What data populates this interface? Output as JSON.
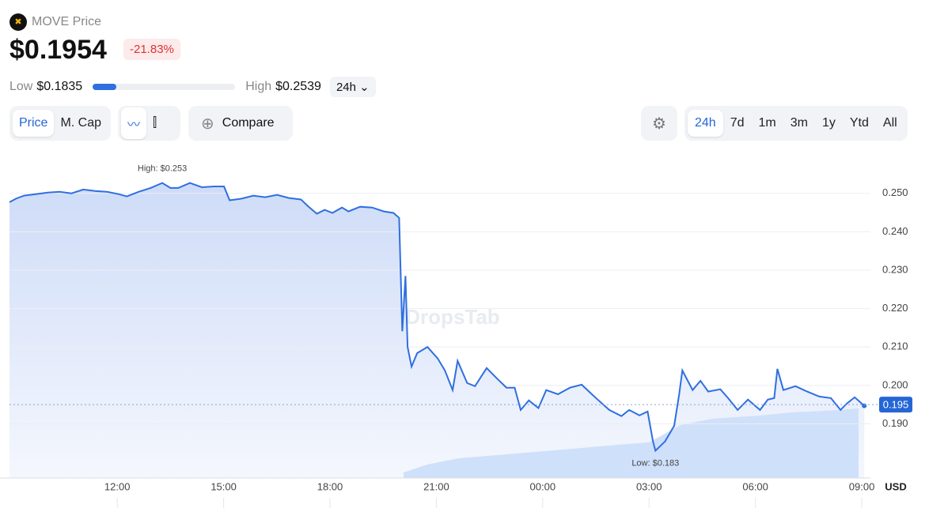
{
  "header": {
    "token": "MOVE Price",
    "price": "$0.1954",
    "change": "-21.83%",
    "low_label": "Low",
    "low": "$0.1835",
    "high_label": "High",
    "high": "$0.2539",
    "period": "24h"
  },
  "toolbar": {
    "tabs": [
      "Price",
      "M. Cap"
    ],
    "compare": "Compare",
    "ranges": [
      "24h",
      "7d",
      "1m",
      "3m",
      "1y",
      "Ytd",
      "All"
    ]
  },
  "watermark": "DropsTab",
  "chart_data": {
    "type": "line",
    "color": "#2f6fe0",
    "currency": "USD",
    "x": [
      8.96,
      9.14,
      9.37,
      9.7,
      10.04,
      10.37,
      10.71,
      11.04,
      11.38,
      11.71,
      12.04,
      12.27,
      12.6,
      12.94,
      13.27,
      13.5,
      13.72,
      14.05,
      14.39,
      14.72,
      15.01,
      15.17,
      15.5,
      15.84,
      16.17,
      16.51,
      16.84,
      17.18,
      17.4,
      17.63,
      17.85,
      18.07,
      18.34,
      18.52,
      18.85,
      19.19,
      19.52,
      19.79,
      19.95,
      20.04,
      20.13,
      20.19,
      20.3,
      20.46,
      20.75,
      21.04,
      21.24,
      21.46,
      21.6,
      21.87,
      22.09,
      22.42,
      22.71,
      22.98,
      23.21,
      23.38,
      23.61,
      23.88,
      24.1,
      24.43,
      24.77,
      25.1,
      25.33,
      25.55,
      25.88,
      26.22,
      26.44,
      26.73,
      26.96,
      27.11,
      27.18,
      27.45,
      27.71,
      27.85,
      27.94,
      28.23,
      28.45,
      28.67,
      29.01,
      29.23,
      29.5,
      29.79,
      30.13,
      30.35,
      30.53,
      30.62,
      30.79,
      31.13,
      31.46,
      31.8,
      32.13,
      32.4,
      32.58,
      32.8,
      33.07
    ],
    "values": [
      0.2477,
      0.2486,
      0.2494,
      0.2498,
      0.2502,
      0.2504,
      0.25,
      0.251,
      0.2506,
      0.2504,
      0.2498,
      0.2492,
      0.2504,
      0.2514,
      0.2527,
      0.2514,
      0.2514,
      0.2527,
      0.2516,
      0.2518,
      0.2518,
      0.2482,
      0.2486,
      0.2494,
      0.249,
      0.2496,
      0.2488,
      0.2484,
      0.2465,
      0.2447,
      0.2457,
      0.2449,
      0.2463,
      0.2453,
      0.2465,
      0.2463,
      0.2453,
      0.2449,
      0.2436,
      0.2141,
      0.2285,
      0.21,
      0.2049,
      0.2084,
      0.21,
      0.207,
      0.2039,
      0.1988,
      0.2064,
      0.2006,
      0.1998,
      0.2045,
      0.2018,
      0.1994,
      0.1994,
      0.1936,
      0.1961,
      0.1941,
      0.1988,
      0.1977,
      0.1994,
      0.2002,
      0.1982,
      0.1963,
      0.1936,
      0.192,
      0.1936,
      0.1922,
      0.1932,
      0.1854,
      0.183,
      0.1854,
      0.1895,
      0.1977,
      0.2039,
      0.1988,
      0.2012,
      0.1984,
      0.199,
      0.1967,
      0.1936,
      0.1963,
      0.1936,
      0.1963,
      0.1967,
      0.2043,
      0.1988,
      0.1998,
      0.1984,
      0.1971,
      0.1967,
      0.1936,
      0.1953,
      0.1969,
      0.1947
    ],
    "xlim": [
      8.96,
      33.2
    ],
    "xticks": [
      {
        "value": 12,
        "label": "12:00"
      },
      {
        "value": 15,
        "label": "15:00"
      },
      {
        "value": 18,
        "label": "18:00"
      },
      {
        "value": 21,
        "label": "21:00"
      },
      {
        "value": 24,
        "label": "00:00"
      },
      {
        "value": 27,
        "label": "03:00"
      },
      {
        "value": 30,
        "label": "06:00"
      },
      {
        "value": 33,
        "label": "09:00"
      }
    ],
    "ylim": [
      0.1759,
      0.2592
    ],
    "yticks": [
      {
        "value": 0.19,
        "label": "0.190"
      },
      {
        "value": 0.2,
        "label": "0.200"
      },
      {
        "value": 0.21,
        "label": "0.210"
      },
      {
        "value": 0.22,
        "label": "0.220"
      },
      {
        "value": 0.23,
        "label": "0.230"
      },
      {
        "value": 0.24,
        "label": "0.240"
      },
      {
        "value": 0.25,
        "label": "0.250"
      }
    ],
    "grid": true,
    "current": 0.195,
    "annotations": [
      {
        "text": "High: $0.253",
        "x": 13.27,
        "y": 0.2527
      },
      {
        "text": "Low: $0.183",
        "x": 27.18,
        "y": 0.183
      }
    ]
  }
}
